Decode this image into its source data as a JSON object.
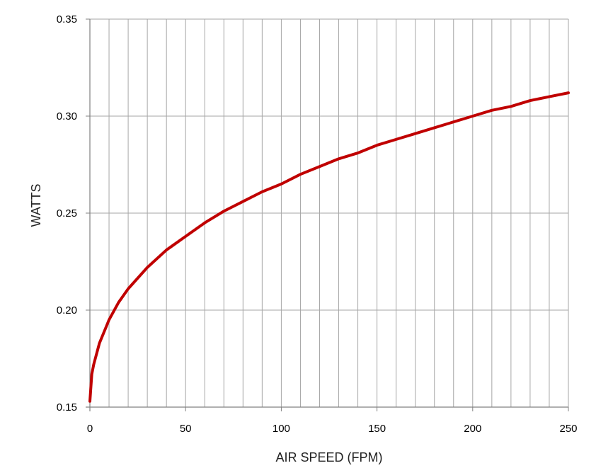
{
  "chart_data": {
    "type": "line",
    "title": "",
    "xlabel": "AIR SPEED (FPM)",
    "ylabel": "WATTS",
    "xlim": [
      0,
      250
    ],
    "ylim": [
      0.15,
      0.35
    ],
    "x_ticks": [
      "0",
      "50",
      "100",
      "150",
      "200",
      "250"
    ],
    "y_ticks": [
      "0.15",
      "0.20",
      "0.25",
      "0.30",
      "0.35"
    ],
    "x_gridline_step": 10,
    "grid": true,
    "legend": "none",
    "series": [
      {
        "color": "#c00000",
        "x": [
          0,
          1,
          2,
          5,
          10,
          15,
          20,
          30,
          40,
          50,
          60,
          70,
          80,
          90,
          100,
          110,
          120,
          130,
          140,
          150,
          160,
          170,
          180,
          190,
          200,
          210,
          220,
          230,
          240,
          250
        ],
        "y": [
          0.153,
          0.167,
          0.172,
          0.183,
          0.195,
          0.204,
          0.211,
          0.222,
          0.231,
          0.238,
          0.245,
          0.251,
          0.256,
          0.261,
          0.265,
          0.27,
          0.274,
          0.278,
          0.281,
          0.285,
          0.288,
          0.291,
          0.294,
          0.297,
          0.3,
          0.303,
          0.305,
          0.308,
          0.31,
          0.312
        ]
      }
    ]
  },
  "colors": {
    "grid": "#a6a6a6",
    "axis": "#808080",
    "background": "#ffffff"
  }
}
